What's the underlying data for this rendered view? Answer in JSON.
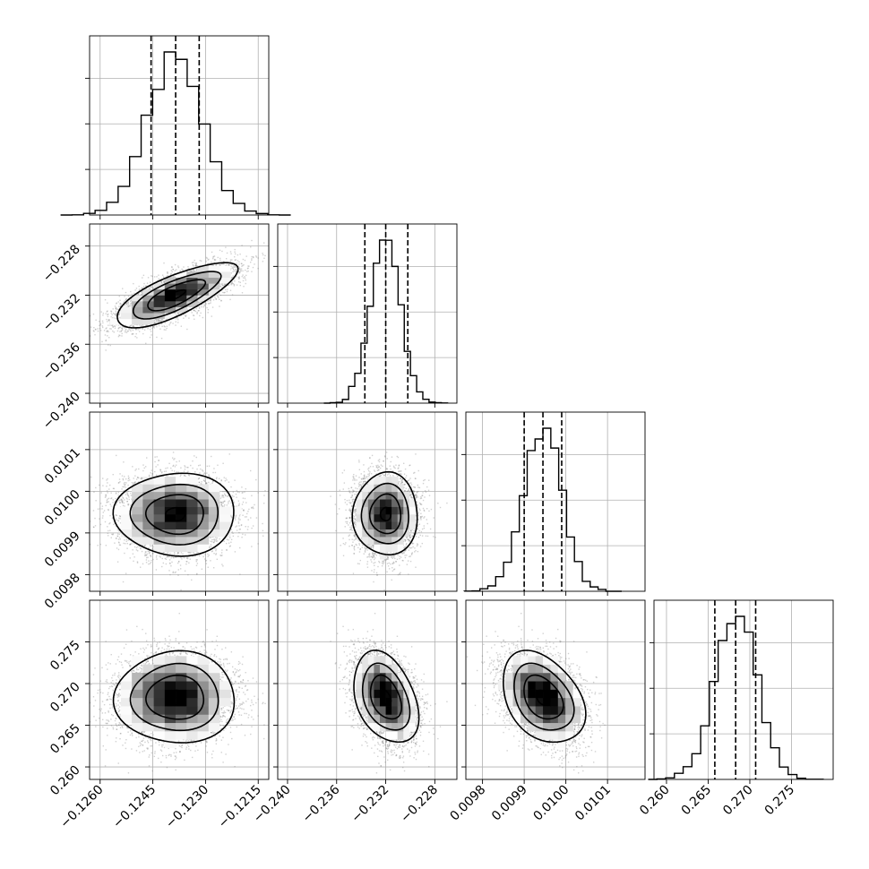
{
  "chart_data": {
    "type": "corner",
    "parameters": [
      {
        "range": [
          -0.1263,
          -0.1212
        ],
        "mean": -0.12385,
        "sigma": 0.00078,
        "quantiles": [
          -0.12455,
          -0.12385,
          -0.12318
        ],
        "ticks": [
          -0.126,
          -0.1245,
          -0.123,
          -0.1215
        ],
        "tick_labels": [
          "−0.1260",
          "−0.1245",
          "−0.1230",
          "−0.1215"
        ]
      },
      {
        "range": [
          -0.2408,
          -0.2262
        ],
        "mean": -0.232,
        "sigma": 0.0012,
        "quantiles": [
          -0.2337,
          -0.232,
          -0.2302
        ],
        "ticks": [
          -0.24,
          -0.236,
          -0.232,
          -0.228
        ],
        "tick_labels": [
          "−0.240",
          "−0.236",
          "−0.232",
          "−0.228"
        ]
      },
      {
        "range": [
          0.00976,
          0.01019
        ],
        "mean": 0.009945,
        "sigma": 4.5e-05,
        "quantiles": [
          0.0099,
          0.009945,
          0.00999
        ],
        "ticks": [
          0.0098,
          0.0099,
          0.01,
          0.0101
        ],
        "tick_labels": [
          "0.0098",
          "0.0099",
          "0.0100",
          "0.0101"
        ]
      },
      {
        "range": [
          0.2585,
          0.28
        ],
        "mean": 0.2683,
        "sigma": 0.0025,
        "quantiles": [
          0.2658,
          0.2683,
          0.2707
        ],
        "ticks": [
          0.26,
          0.265,
          0.27,
          0.275
        ],
        "tick_labels": [
          "0.260",
          "0.265",
          "0.270",
          "0.275"
        ]
      }
    ],
    "correlations": [
      [
        1,
        0.75,
        0,
        0
      ],
      [
        0.75,
        1,
        0,
        -0.35
      ],
      [
        0,
        0,
        1,
        -0.35
      ],
      [
        0,
        -0.35,
        -0.35,
        1
      ]
    ],
    "histogram_bins": 20,
    "grid": true
  }
}
